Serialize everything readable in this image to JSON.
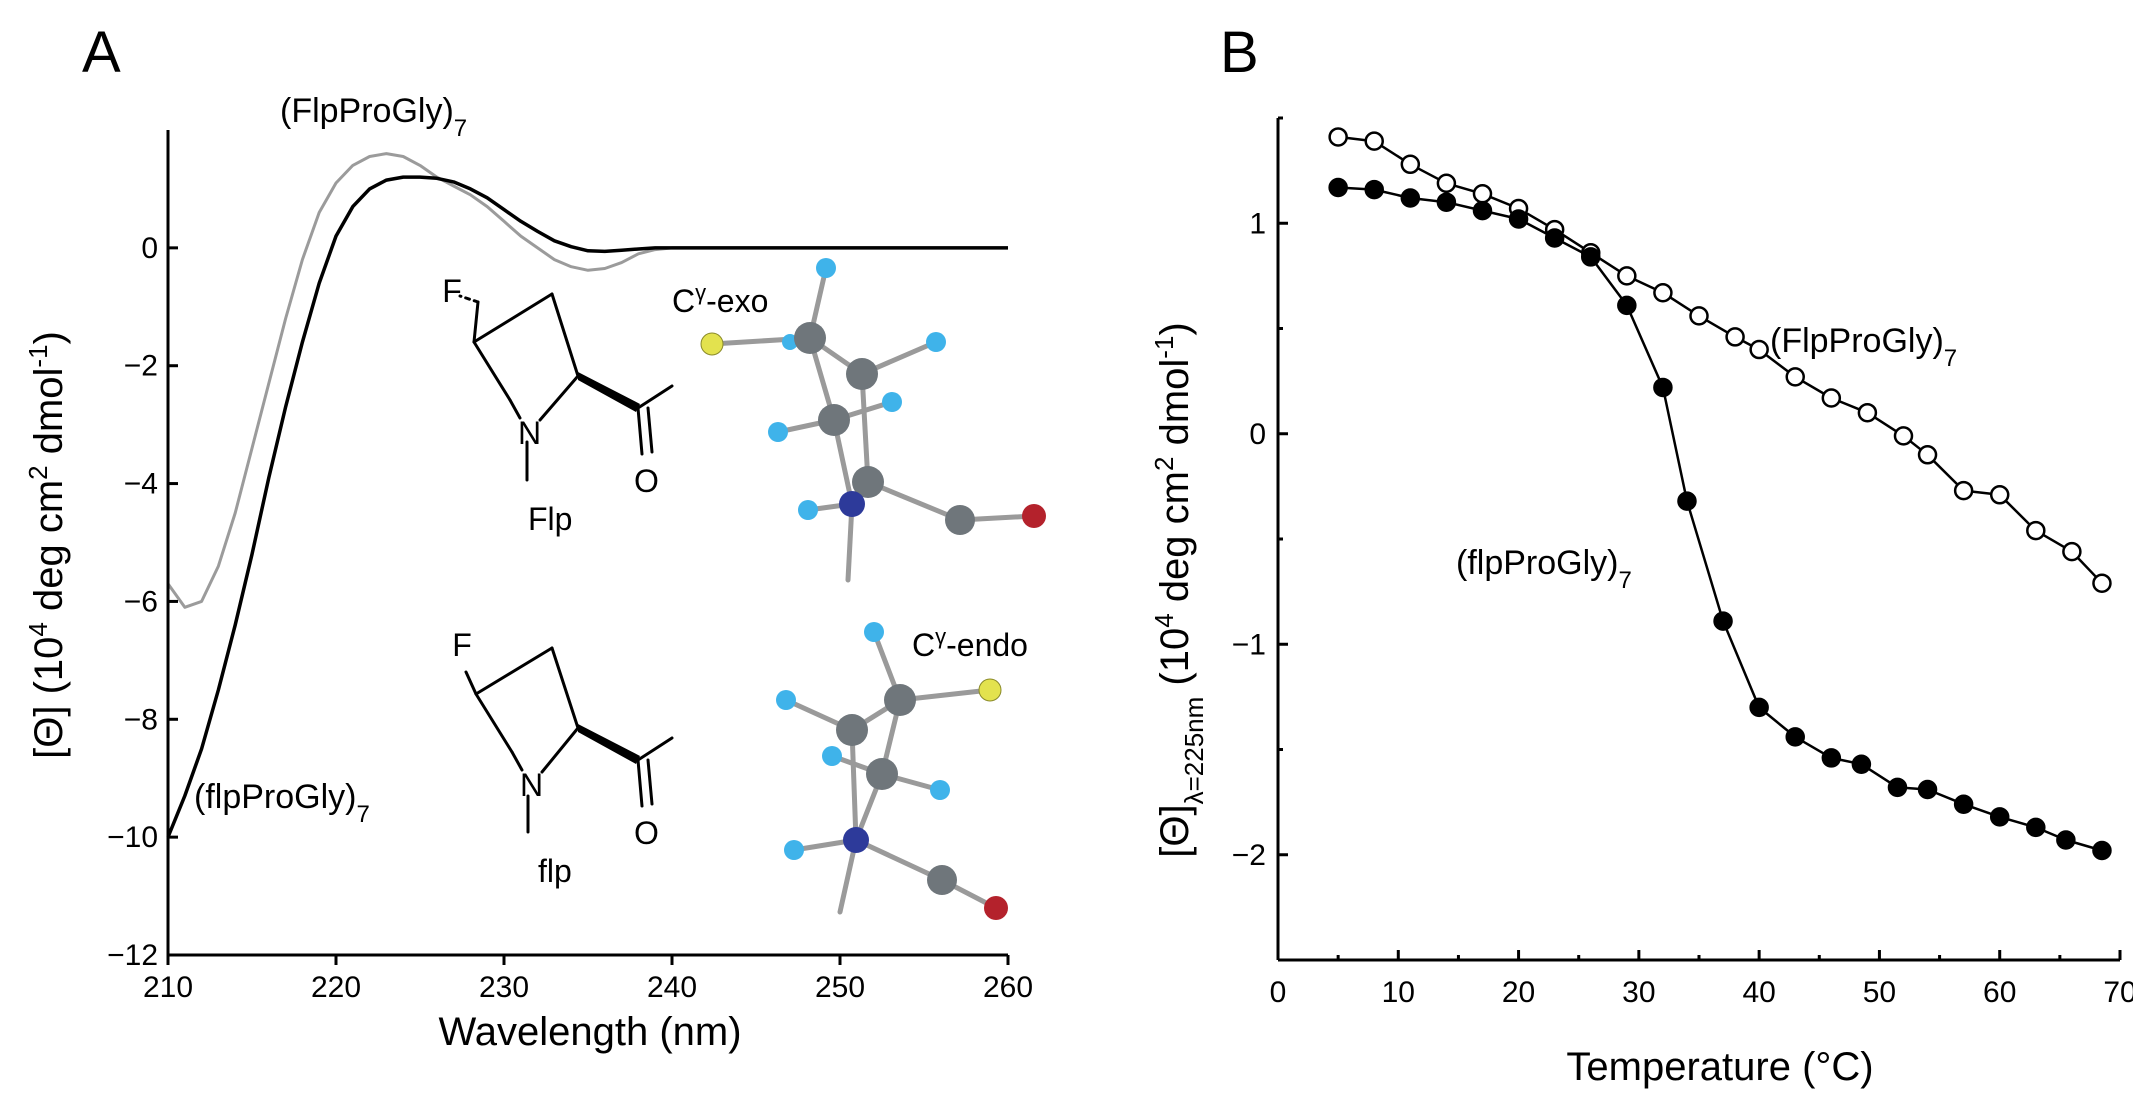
{
  "colors": {
    "black": "#000000",
    "gray_curve": "#9b9b9b",
    "atom_carbon": "#6f767b",
    "atom_hydrogen": "#3fb3ea",
    "atom_nitrogen": "#2d3a9a",
    "atom_oxygen": "#b4222c",
    "atom_fluorine": "#e3e24e"
  },
  "chart_data": [
    {
      "panel": "A",
      "type": "line",
      "xlabel": "Wavelength (nm)",
      "ylabel_parts": {
        "base": "[Θ] (10",
        "exp1": "4",
        "mid": " deg cm",
        "exp2": "2",
        "tail": " dmol",
        "exp3": "-1",
        "close": ")"
      },
      "xlim": [
        210,
        260
      ],
      "ylim": [
        -12,
        2
      ],
      "xticks": [
        210,
        220,
        230,
        240,
        250,
        260
      ],
      "yticks": [
        0,
        -2,
        -4,
        -6,
        -8,
        -10,
        -12
      ],
      "ytick_labels": [
        "0",
        "−2",
        "−4",
        "−6",
        "−8",
        "−10",
        "−12"
      ],
      "grid": false,
      "series": [
        {
          "label_base": "(FlpProGly)",
          "label_sub": "7",
          "color": "#9b9b9b",
          "x": [
            210,
            211,
            212,
            213,
            214,
            215,
            216,
            217,
            218,
            219,
            220,
            221,
            222,
            223,
            224,
            225,
            226,
            227,
            228,
            229,
            230,
            231,
            232,
            233,
            234,
            235,
            236,
            237,
            238,
            239,
            240,
            245,
            250,
            255,
            260
          ],
          "y": [
            -5.7,
            -6.1,
            -6.0,
            -5.4,
            -4.5,
            -3.4,
            -2.3,
            -1.2,
            -0.2,
            0.6,
            1.1,
            1.4,
            1.55,
            1.6,
            1.55,
            1.4,
            1.2,
            1.05,
            0.9,
            0.7,
            0.45,
            0.2,
            0.0,
            -0.2,
            -0.32,
            -0.38,
            -0.35,
            -0.25,
            -0.1,
            -0.03,
            0.0,
            0.0,
            0.0,
            0.0,
            0.0
          ]
        },
        {
          "label_base": "(flpProGly)",
          "label_sub": "7",
          "color": "#000000",
          "x": [
            210,
            211,
            212,
            213,
            214,
            215,
            216,
            217,
            218,
            219,
            220,
            221,
            222,
            223,
            224,
            225,
            226,
            227,
            228,
            229,
            230,
            231,
            232,
            233,
            234,
            235,
            236,
            237,
            238,
            239,
            240,
            245,
            250,
            255,
            260
          ],
          "y": [
            -10.0,
            -9.3,
            -8.5,
            -7.5,
            -6.4,
            -5.2,
            -3.9,
            -2.7,
            -1.6,
            -0.6,
            0.2,
            0.7,
            1.0,
            1.15,
            1.2,
            1.2,
            1.18,
            1.12,
            1.0,
            0.85,
            0.65,
            0.45,
            0.28,
            0.12,
            0.02,
            -0.05,
            -0.06,
            -0.04,
            -0.02,
            0.0,
            0.0,
            0.0,
            0.0,
            0.0,
            0.0
          ]
        }
      ],
      "annotations": {
        "flp_upper_name": "Flp",
        "flp_lower_name": "flp",
        "fluorine_symbol": "F",
        "nitrogen_symbol": "N",
        "oxygen_symbol": "O",
        "exo_label_base": "C",
        "exo_label_sup": "γ",
        "exo_label_tail": "-exo",
        "endo_label_base": "C",
        "endo_label_sup": "γ",
        "endo_label_tail": "-endo"
      }
    },
    {
      "panel": "B",
      "type": "scatter",
      "xlabel": "Temperature (°C)",
      "ylabel_parts": {
        "base": "[Θ]",
        "sub": "λ=225nm",
        "mid": " (10",
        "exp1": "4",
        "mid2": " deg cm",
        "exp2": "2",
        "tail": " dmol",
        "exp3": "-1",
        "close": ")"
      },
      "xlim": [
        0,
        70
      ],
      "ylim": [
        -2.5,
        1.5
      ],
      "xticks": [
        0,
        10,
        20,
        30,
        40,
        50,
        60,
        70
      ],
      "yticks": [
        1,
        0,
        -1,
        -2
      ],
      "ytick_labels": [
        "1",
        "0",
        "−1",
        "−2"
      ],
      "grid": false,
      "series": [
        {
          "label_base": "(FlpProGly)",
          "label_sub": "7",
          "marker": "open-circle",
          "x": [
            5,
            8,
            11,
            14,
            17,
            20,
            23,
            26,
            29,
            32,
            35,
            38,
            40,
            43,
            46,
            49,
            52,
            54,
            57,
            60,
            63,
            66,
            68.5
          ],
          "y": [
            1.41,
            1.39,
            1.28,
            1.19,
            1.14,
            1.07,
            0.97,
            0.86,
            0.75,
            0.67,
            0.56,
            0.46,
            0.4,
            0.27,
            0.17,
            0.1,
            -0.01,
            -0.1,
            -0.27,
            -0.29,
            -0.46,
            -0.56,
            -0.71
          ]
        },
        {
          "label_base": "(flpProGly)",
          "label_sub": "7",
          "marker": "filled-circle",
          "x": [
            5,
            8,
            11,
            14,
            17,
            20,
            23,
            26,
            29,
            32,
            34,
            37,
            40,
            43,
            46,
            48.5,
            51.5,
            54,
            57,
            60,
            63,
            65.5,
            68.5
          ],
          "y": [
            1.17,
            1.16,
            1.12,
            1.1,
            1.06,
            1.02,
            0.93,
            0.84,
            0.61,
            0.22,
            -0.32,
            -0.89,
            -1.3,
            -1.44,
            -1.54,
            -1.57,
            -1.68,
            -1.69,
            -1.76,
            -1.82,
            -1.87,
            -1.93,
            -1.98
          ]
        }
      ]
    }
  ],
  "panels": {
    "a_letter": "A",
    "b_letter": "B"
  }
}
